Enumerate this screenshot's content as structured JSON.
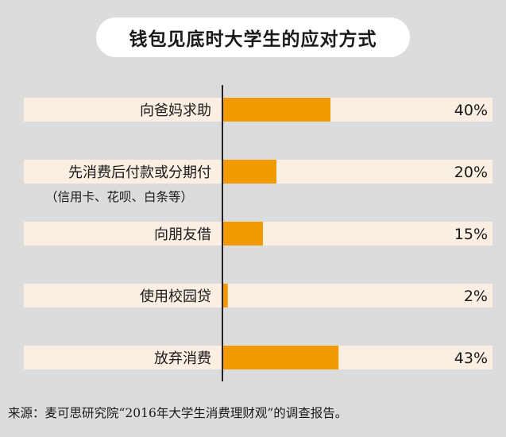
{
  "chart_data": {
    "type": "bar",
    "orientation": "horizontal",
    "title": "钱包见底时大学生的应对方式",
    "categories": [
      "向爸妈求助",
      "先消费后付款或分期付",
      "向朋友借",
      "使用校园贷",
      "放弃消费"
    ],
    "category_notes": [
      "",
      "（信用卡、花呗、白条等）",
      "",
      "",
      ""
    ],
    "values": [
      40,
      20,
      15,
      2,
      43
    ],
    "value_labels": [
      "40%",
      "20%",
      "15%",
      "2%",
      "43%"
    ],
    "xlim": [
      0,
      100
    ],
    "grid": false,
    "legend": "none",
    "colors": {
      "bar": "#f39a00",
      "track": "#fbeee2",
      "background": "#dcdcdc",
      "axis": "#222222"
    }
  },
  "source": "来源：麦可思研究院“2016年大学生消费理财观”的调查报告。"
}
